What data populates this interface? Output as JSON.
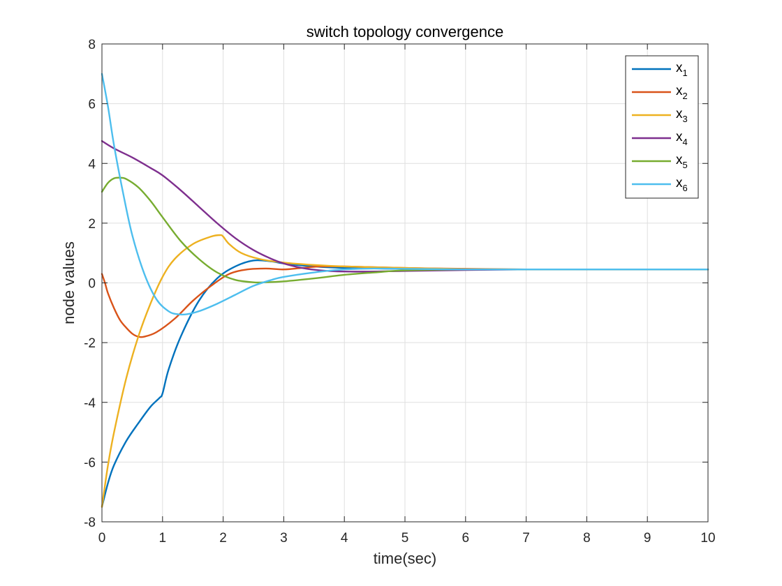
{
  "chart_data": {
    "type": "line",
    "title": "switch topology convergence",
    "xlabel": "time(sec)",
    "ylabel": "node values",
    "xlim": [
      0,
      10
    ],
    "ylim": [
      -8,
      8
    ],
    "xticks": [
      "0",
      "1",
      "2",
      "3",
      "4",
      "5",
      "6",
      "7",
      "8",
      "9",
      "10"
    ],
    "yticks": [
      "-8",
      "-6",
      "-4",
      "-2",
      "0",
      "2",
      "4",
      "6",
      "8"
    ],
    "grid": true,
    "legend_position": "top-right",
    "series": [
      {
        "name": "x",
        "sub": "1",
        "color": "#0072BD",
        "x": [
          0,
          0.1,
          0.2,
          0.4,
          0.6,
          0.8,
          0.95,
          1.0,
          1.1,
          1.3,
          1.6,
          1.9,
          2.2,
          2.5,
          2.8,
          3.0,
          3.5,
          4,
          5,
          6,
          7,
          8,
          9,
          10
        ],
        "y": [
          -7.5,
          -6.7,
          -6.1,
          -5.3,
          -4.7,
          -4.15,
          -3.85,
          -3.7,
          -2.9,
          -1.8,
          -0.6,
          0.15,
          0.55,
          0.75,
          0.72,
          0.65,
          0.55,
          0.5,
          0.47,
          0.45,
          0.45,
          0.45,
          0.45,
          0.45
        ]
      },
      {
        "name": "x",
        "sub": "2",
        "color": "#D95319",
        "x": [
          0,
          0.05,
          0.1,
          0.2,
          0.3,
          0.4,
          0.5,
          0.6,
          0.7,
          0.9,
          1.2,
          1.5,
          1.8,
          2.1,
          2.4,
          2.7,
          3.0,
          3.3,
          3.6,
          4,
          5,
          6,
          7,
          8,
          9,
          10
        ],
        "y": [
          0.3,
          0.0,
          -0.35,
          -0.85,
          -1.25,
          -1.5,
          -1.7,
          -1.8,
          -1.8,
          -1.65,
          -1.2,
          -0.6,
          -0.1,
          0.3,
          0.45,
          0.48,
          0.45,
          0.5,
          0.55,
          0.55,
          0.5,
          0.47,
          0.45,
          0.45,
          0.45,
          0.45
        ]
      },
      {
        "name": "x",
        "sub": "3",
        "color": "#EDB120",
        "x": [
          0,
          0.1,
          0.2,
          0.4,
          0.6,
          0.8,
          1.0,
          1.2,
          1.5,
          1.8,
          1.95,
          2.0,
          2.1,
          2.3,
          2.6,
          3.0,
          3.5,
          4,
          5,
          6,
          7,
          8,
          9,
          10
        ],
        "y": [
          -7.5,
          -6.1,
          -5.0,
          -3.2,
          -1.8,
          -0.7,
          0.2,
          0.8,
          1.3,
          1.55,
          1.6,
          1.55,
          1.3,
          1.0,
          0.8,
          0.68,
          0.6,
          0.55,
          0.5,
          0.46,
          0.45,
          0.45,
          0.45,
          0.45
        ]
      },
      {
        "name": "x",
        "sub": "4",
        "color": "#7E2F8E",
        "x": [
          0,
          0.2,
          0.5,
          0.8,
          1.0,
          1.3,
          1.6,
          1.9,
          2.2,
          2.5,
          2.8,
          3.0,
          3.3,
          3.6,
          4.0,
          4.5,
          5,
          6,
          7,
          8,
          9,
          10
        ],
        "y": [
          4.75,
          4.5,
          4.2,
          3.85,
          3.6,
          3.1,
          2.55,
          2.0,
          1.5,
          1.1,
          0.8,
          0.65,
          0.5,
          0.42,
          0.38,
          0.38,
          0.4,
          0.43,
          0.45,
          0.45,
          0.45,
          0.45
        ]
      },
      {
        "name": "x",
        "sub": "5",
        "color": "#77AC30",
        "x": [
          0,
          0.1,
          0.2,
          0.3,
          0.4,
          0.6,
          0.8,
          1.0,
          1.3,
          1.6,
          1.9,
          2.2,
          2.5,
          2.7,
          3.0,
          3.5,
          4,
          4.5,
          5,
          6,
          7,
          8,
          9,
          10
        ],
        "y": [
          3.05,
          3.35,
          3.5,
          3.52,
          3.48,
          3.2,
          2.75,
          2.2,
          1.4,
          0.8,
          0.35,
          0.1,
          0.02,
          0.02,
          0.05,
          0.15,
          0.27,
          0.35,
          0.42,
          0.45,
          0.45,
          0.45,
          0.45,
          0.45
        ]
      },
      {
        "name": "x",
        "sub": "6",
        "color": "#4DBEEE",
        "x": [
          0,
          0.1,
          0.2,
          0.35,
          0.5,
          0.7,
          0.9,
          1.1,
          1.25,
          1.4,
          1.6,
          1.9,
          2.2,
          2.5,
          2.8,
          3.0,
          3.5,
          4,
          4.5,
          5,
          6,
          7,
          8,
          9,
          10
        ],
        "y": [
          7.0,
          5.9,
          4.6,
          3.0,
          1.6,
          0.3,
          -0.55,
          -0.95,
          -1.05,
          -1.05,
          -0.95,
          -0.7,
          -0.4,
          -0.1,
          0.1,
          0.2,
          0.35,
          0.45,
          0.48,
          0.47,
          0.45,
          0.45,
          0.45,
          0.45,
          0.45
        ]
      }
    ]
  }
}
